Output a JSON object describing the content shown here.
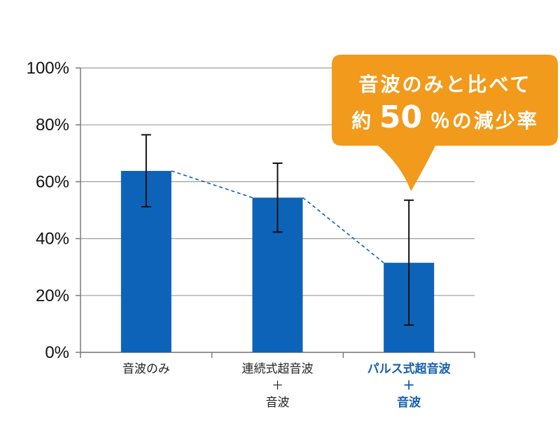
{
  "chart_data": {
    "type": "bar",
    "categories": [
      [
        "音波のみ"
      ],
      [
        "連続式超音波",
        "＋",
        "音波"
      ],
      [
        "パルス式超音波",
        "＋",
        "音波"
      ]
    ],
    "values": [
      63.8,
      54.4,
      31.5
    ],
    "error_high": [
      76.5,
      66.5,
      53.5
    ],
    "error_low": [
      51.2,
      42.3,
      9.6
    ],
    "highlight_category": 2,
    "trend_line": "dashed",
    "ylim": [
      0,
      100
    ],
    "yticks": [
      "0%",
      "20%",
      "40%",
      "60%",
      "80%",
      "100%"
    ],
    "grid": true,
    "colors": {
      "bar": "#0d63b8",
      "grid": "#9e9e9e",
      "highlight_label": "#1560b0",
      "callout": "#f29a1b",
      "trend": "#0d63b8"
    },
    "callout": {
      "line1": "音波のみと比べて",
      "line2_prefix": "約",
      "line2_number": "50",
      "line2_suffix": "％の減少率"
    }
  }
}
